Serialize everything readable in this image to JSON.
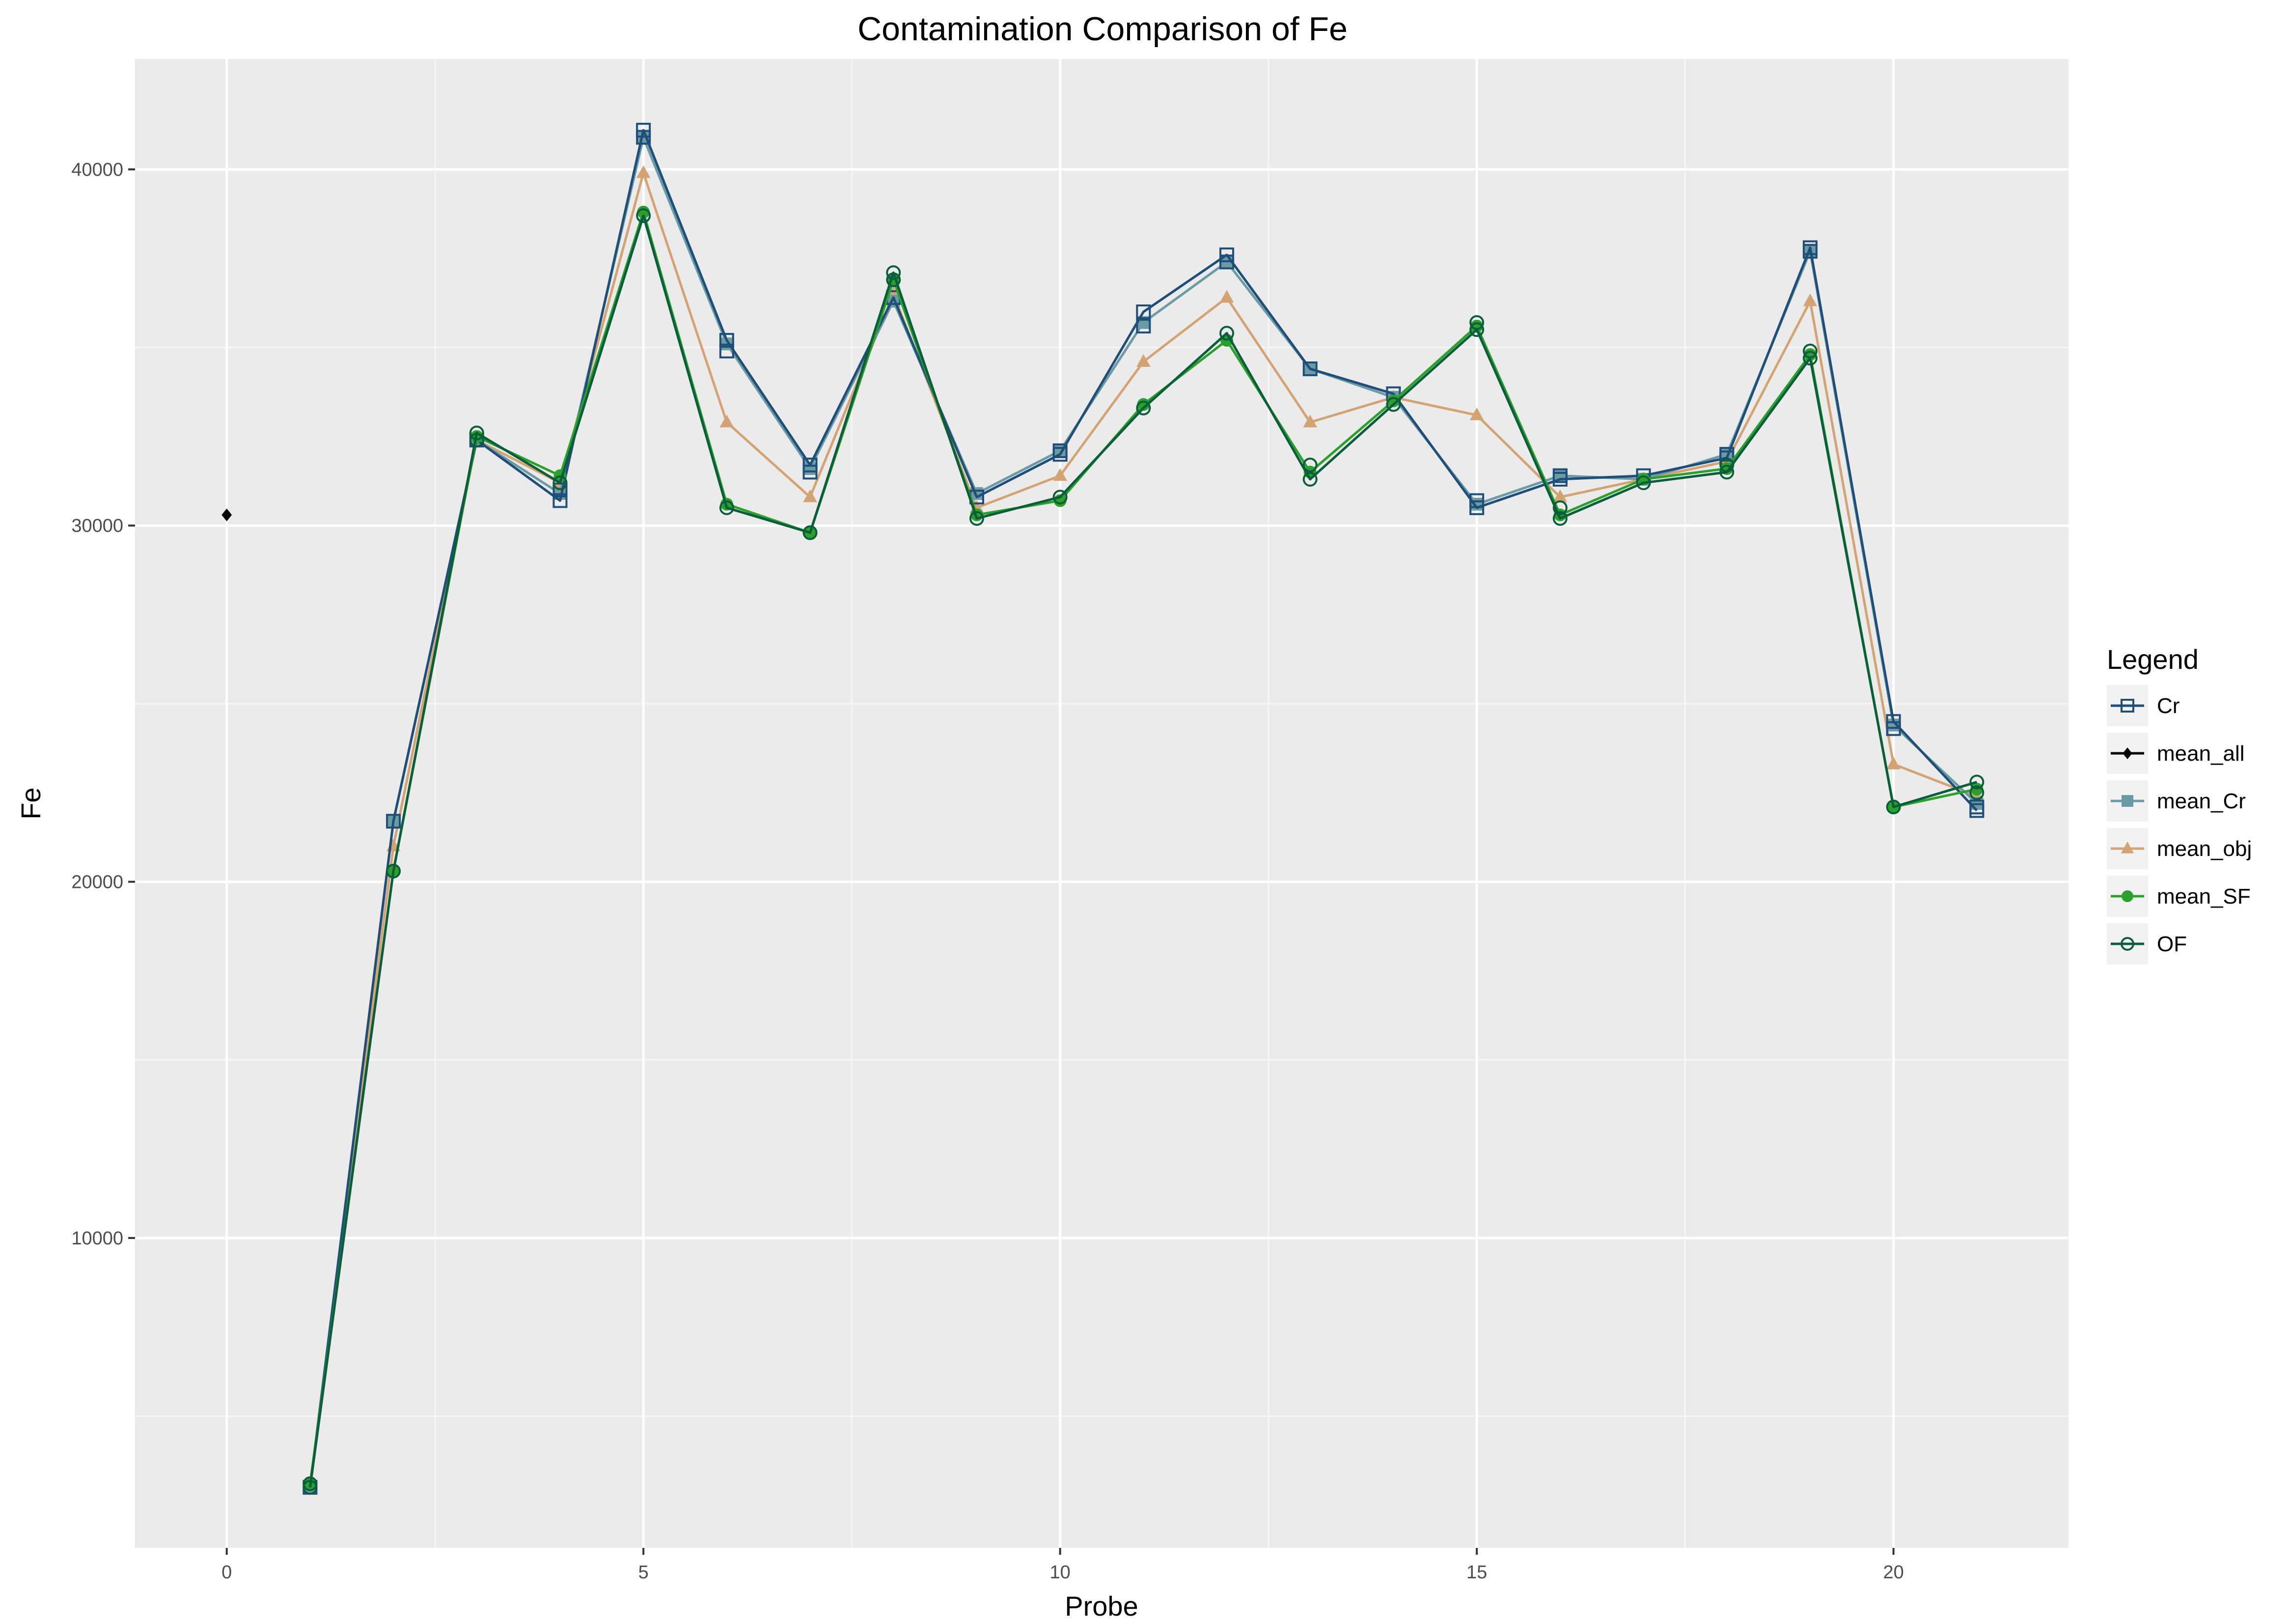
{
  "chart_data": {
    "type": "line",
    "title": "Contamination Comparison of Fe",
    "xlabel": "Probe",
    "ylabel": "Fe",
    "xlim": [
      -1.1,
      22.1
    ],
    "ylim": [
      1300,
      43100
    ],
    "x_ticks": [
      0,
      5,
      10,
      15,
      20
    ],
    "y_ticks": [
      10000,
      20000,
      30000,
      40000
    ],
    "grid": true,
    "legend_title": "Legend",
    "legend_position": "right",
    "series": [
      {
        "name": "mean_obj",
        "color": "#d4a373",
        "marker": "triangle",
        "x": [
          1,
          2,
          3,
          4,
          5,
          6,
          7,
          8,
          9,
          10,
          11,
          12,
          13,
          14,
          15,
          16,
          17,
          18,
          19,
          20,
          21
        ],
        "y": [
          3000,
          21000,
          32400,
          31200,
          39900,
          32900,
          30800,
          36500,
          30500,
          31400,
          34600,
          36400,
          32900,
          33600,
          33100,
          30800,
          31300,
          31800,
          36300,
          23300,
          22400
        ]
      },
      {
        "name": "mean_Cr",
        "color": "#6b9ba4",
        "marker": "square-filled",
        "x": [
          1,
          2,
          3,
          4,
          5,
          6,
          7,
          8,
          9,
          10,
          11,
          12,
          13,
          14,
          15,
          16,
          17,
          18,
          19,
          20,
          21
        ],
        "y": [
          3000,
          21700,
          32400,
          30900,
          40900,
          35100,
          31600,
          36300,
          30900,
          32100,
          35700,
          37400,
          34400,
          33600,
          30600,
          31400,
          31300,
          32000,
          37700,
          24400,
          22200
        ]
      },
      {
        "name": "Cr",
        "color": "#1f4e79",
        "marker": "square-open",
        "x": [
          1,
          2,
          3,
          4,
          5,
          6,
          7,
          8,
          9,
          10,
          11,
          12,
          13,
          14,
          15,
          16,
          17,
          18,
          19,
          20,
          21
        ],
        "y": [
          3000,
          21700,
          32400,
          30700,
          41100,
          35200,
          31700,
          36400,
          30800,
          32000,
          36000,
          37600,
          34400,
          33700,
          30500,
          31300,
          31400,
          31900,
          37800,
          24500,
          22000
        ],
        "y_extra": [
          [
            4,
            31000
          ],
          [
            5,
            40900
          ],
          [
            6,
            34900
          ],
          [
            7,
            31500
          ],
          [
            10,
            32100
          ],
          [
            11,
            35600
          ],
          [
            12,
            37400
          ],
          [
            15,
            30700
          ],
          [
            16,
            31400
          ],
          [
            18,
            32000
          ],
          [
            19,
            37700
          ],
          [
            20,
            24300
          ],
          [
            21,
            22100
          ]
        ]
      },
      {
        "name": "mean_SF",
        "color": "#2ca02c",
        "marker": "circle-filled",
        "x": [
          1,
          2,
          3,
          4,
          5,
          6,
          7,
          8,
          9,
          10,
          11,
          12,
          13,
          14,
          15,
          16,
          17,
          18,
          19,
          20,
          21
        ],
        "y": [
          3100,
          20300,
          32500,
          31400,
          38800,
          30600,
          29800,
          36900,
          30300,
          30700,
          33400,
          35200,
          31500,
          33500,
          35600,
          30300,
          31300,
          31600,
          34800,
          22100,
          22600
        ]
      },
      {
        "name": "OF",
        "color": "#0b5e3b",
        "marker": "circle-open",
        "x": [
          1,
          2,
          3,
          4,
          5,
          6,
          7,
          8,
          9,
          10,
          11,
          12,
          13,
          14,
          15,
          16,
          17,
          18,
          19,
          20,
          21
        ],
        "y": [
          3000,
          20300,
          32600,
          31200,
          38700,
          30500,
          29800,
          37100,
          30200,
          30800,
          33300,
          35400,
          31300,
          33400,
          35500,
          30200,
          31200,
          31500,
          34700,
          22100,
          22800
        ],
        "y_extra": [
          [
            1,
            3100
          ],
          [
            3,
            32400
          ],
          [
            8,
            36900
          ],
          [
            13,
            31700
          ],
          [
            15,
            35700
          ],
          [
            16,
            30500
          ],
          [
            18,
            31700
          ],
          [
            21,
            22500
          ],
          [
            19,
            34900
          ]
        ]
      },
      {
        "name": "mean_all",
        "color": "#000000",
        "marker": "diamond",
        "x": [
          0
        ],
        "y": [
          30300
        ]
      }
    ],
    "legend_order": [
      "Cr",
      "mean_all",
      "mean_Cr",
      "mean_obj",
      "mean_SF",
      "OF"
    ]
  }
}
